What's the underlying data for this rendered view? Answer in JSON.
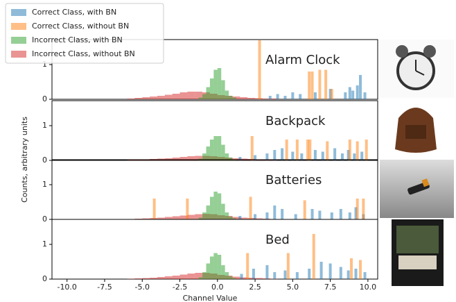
{
  "chart_data": {
    "type": "histogram",
    "x_label": "Channel Value",
    "y_label": "Counts, arbitrary units",
    "xlim": [
      -11,
      10.65
    ],
    "xticks": [
      {
        "value": -10,
        "label": "-10.0"
      },
      {
        "value": -7.5,
        "label": "-7.5"
      },
      {
        "value": -5,
        "label": "-5.0"
      },
      {
        "value": -2.5,
        "label": "-2.5"
      },
      {
        "value": 0,
        "label": "0.0"
      },
      {
        "value": 2.5,
        "label": "2.5"
      },
      {
        "value": 5,
        "label": "5.0"
      },
      {
        "value": 7.5,
        "label": "7.5"
      },
      {
        "value": 10,
        "label": "10.0"
      }
    ],
    "series": [
      {
        "name": "Correct Class, with BN",
        "color": "#1f77b4"
      },
      {
        "name": "Correct Class, without BN",
        "color": "#ff7f0e"
      },
      {
        "name": "Incorrect Class, with BN",
        "color": "#2ca02c"
      },
      {
        "name": "Incorrect Class, without BN",
        "color": "#d62728"
      }
    ],
    "panels": [
      {
        "label": "Alarm Clock",
        "ylim": [
          0,
          1.72
        ],
        "yticks": [
          0,
          1
        ],
        "series": [
          {
            "x": [
              3.5,
              4,
              4.5,
              5,
              5.5,
              6.5,
              7.5,
              8.5,
              8.8,
              9,
              9.3,
              9.5,
              9.8
            ],
            "values": [
              0.1,
              0.15,
              0.1,
              0.2,
              0.15,
              0.2,
              0.3,
              0.2,
              0.35,
              0.25,
              0.4,
              0.7,
              0.2
            ]
          },
          {
            "x": [
              2.8,
              6.1,
              6.3,
              6.8,
              7.2,
              7.6
            ],
            "values": [
              1.7,
              0.8,
              0.8,
              0.85,
              0.85,
              0.3
            ]
          },
          {
            "bins": [
              -1.25,
              -1,
              -0.75,
              -0.5,
              -0.25,
              0,
              0.25,
              0.5,
              0.75,
              1,
              1.25
            ],
            "values": [
              0.05,
              0.15,
              0.35,
              0.6,
              0.85,
              0.9,
              0.55,
              0.25,
              0.1,
              0.05
            ]
          },
          {
            "bins": [
              -6,
              -5.5,
              -5,
              -4.5,
              -4,
              -3.5,
              -3,
              -2.5,
              -2,
              -1.5,
              -1,
              -0.5,
              0,
              0.5,
              1,
              1.5,
              2,
              2.5,
              3,
              3.5,
              4
            ],
            "values": [
              0.02,
              0.04,
              0.06,
              0.08,
              0.1,
              0.13,
              0.16,
              0.2,
              0.22,
              0.22,
              0.2,
              0.16,
              0.12,
              0.1,
              0.08,
              0.06,
              0.04,
              0.03,
              0.02,
              0.02
            ]
          }
        ]
      },
      {
        "label": "Backpack",
        "ylim": [
          0,
          1.72
        ],
        "yticks": [
          0,
          1
        ],
        "series": [
          {
            "x": [
              1.5,
              2.5,
              3.3,
              3.8,
              4.3,
              5,
              5.6,
              6.5,
              7,
              7.8,
              8.3,
              8.7,
              9.1,
              9.6
            ],
            "values": [
              0.1,
              0.15,
              0.2,
              0.3,
              0.35,
              0.25,
              0.2,
              0.3,
              0.25,
              0.35,
              0.2,
              0.3,
              0.2,
              0.25
            ]
          },
          {
            "x": [
              2.3,
              4.6,
              5.3,
              6,
              6.15,
              7.3,
              8.8,
              9.3,
              9.9
            ],
            "values": [
              0.7,
              0.6,
              0.6,
              0.6,
              0.6,
              0.55,
              0.6,
              0.55,
              0.6
            ]
          },
          {
            "bins": [
              -1.25,
              -1,
              -0.75,
              -0.5,
              -0.25,
              0,
              0.25,
              0.5,
              0.75,
              1,
              1.25
            ],
            "values": [
              0.05,
              0.2,
              0.4,
              0.6,
              0.7,
              0.7,
              0.45,
              0.2,
              0.08,
              0.03
            ]
          },
          {
            "bins": [
              -6,
              -5.5,
              -5,
              -4.5,
              -4,
              -3.5,
              -3,
              -2.5,
              -2,
              -1.5,
              -1,
              -0.5,
              0,
              0.5,
              1,
              1.5,
              2,
              2.5,
              3,
              3.5,
              4
            ],
            "values": [
              0.01,
              0.02,
              0.03,
              0.04,
              0.05,
              0.06,
              0.08,
              0.1,
              0.12,
              0.13,
              0.13,
              0.12,
              0.1,
              0.08,
              0.06,
              0.05,
              0.04,
              0.03,
              0.02,
              0.01
            ]
          }
        ]
      },
      {
        "label": "Batteries",
        "ylim": [
          0,
          1.72
        ],
        "yticks": [
          0,
          1
        ],
        "series": [
          {
            "x": [
              1.5,
              2.5,
              3.3,
              3.8,
              4.3,
              5.2,
              6.3,
              6.8,
              7.6,
              8.2,
              8.8,
              9.2,
              9.7
            ],
            "values": [
              0.1,
              0.15,
              0.2,
              0.4,
              0.3,
              0.15,
              0.3,
              0.25,
              0.2,
              0.3,
              0.2,
              0.35,
              0.15
            ]
          },
          {
            "x": [
              -4.2,
              -2,
              2.2,
              5.8,
              9.3,
              9.7
            ],
            "values": [
              0.6,
              0.6,
              0.65,
              0.55,
              0.6,
              0.6
            ]
          },
          {
            "bins": [
              -1.25,
              -1,
              -0.75,
              -0.5,
              -0.25,
              0,
              0.25,
              0.5,
              0.75,
              1,
              1.25
            ],
            "values": [
              0.05,
              0.2,
              0.4,
              0.65,
              0.8,
              0.75,
              0.45,
              0.2,
              0.08,
              0.03
            ]
          },
          {
            "bins": [
              -6,
              -5.5,
              -5,
              -4.5,
              -4,
              -3.5,
              -3,
              -2.5,
              -2,
              -1.5,
              -1,
              -0.5,
              0,
              0.5,
              1,
              1.5,
              2,
              2.5,
              3,
              3.5,
              4
            ],
            "values": [
              0.01,
              0.02,
              0.03,
              0.04,
              0.05,
              0.07,
              0.09,
              0.11,
              0.13,
              0.15,
              0.16,
              0.15,
              0.12,
              0.1,
              0.07,
              0.05,
              0.04,
              0.03,
              0.02,
              0.01
            ]
          }
        ]
      },
      {
        "label": "Bed",
        "ylim": [
          0,
          1.72
        ],
        "yticks": [
          0,
          1
        ],
        "series": [
          {
            "x": [
              1.6,
              2.4,
              3.3,
              3.8,
              4.5,
              5.3,
              6.1,
              6.9,
              7.5,
              8.2,
              8.7,
              9.2,
              9.8
            ],
            "values": [
              0.15,
              0.3,
              0.4,
              0.2,
              0.25,
              0.2,
              0.3,
              0.5,
              0.45,
              0.35,
              0.25,
              0.3,
              0.2
            ]
          },
          {
            "x": [
              2,
              4.7,
              6.4,
              8.9,
              9.5
            ],
            "values": [
              0.75,
              0.75,
              1.3,
              0.6,
              0.55
            ]
          },
          {
            "bins": [
              -1.25,
              -1,
              -0.75,
              -0.5,
              -0.25,
              0,
              0.25,
              0.5,
              0.75,
              1,
              1.25
            ],
            "values": [
              0.05,
              0.2,
              0.45,
              0.65,
              0.75,
              0.7,
              0.4,
              0.2,
              0.08,
              0.03
            ]
          },
          {
            "bins": [
              -6,
              -5.5,
              -5,
              -4.5,
              -4,
              -3.5,
              -3,
              -2.5,
              -2,
              -1.5,
              -1,
              -0.5,
              0,
              0.5,
              1,
              1.5,
              2,
              2.5,
              3,
              3.5,
              4
            ],
            "values": [
              0.01,
              0.02,
              0.03,
              0.04,
              0.06,
              0.08,
              0.1,
              0.13,
              0.16,
              0.18,
              0.18,
              0.16,
              0.12,
              0.1,
              0.07,
              0.05,
              0.04,
              0.03,
              0.02,
              0.01
            ]
          }
        ]
      }
    ]
  }
}
